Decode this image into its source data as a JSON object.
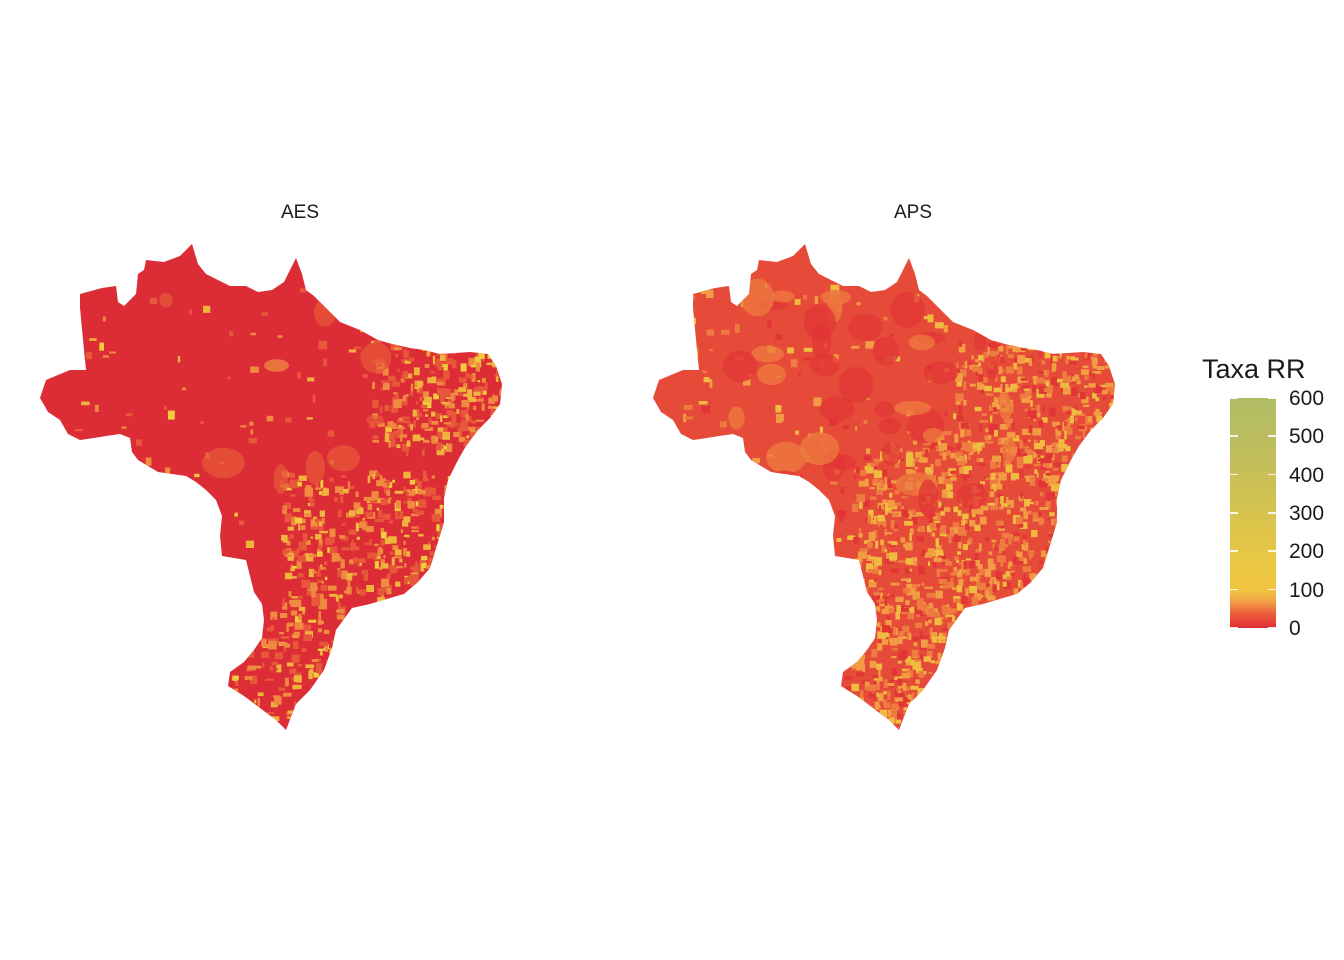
{
  "panels": [
    {
      "title": "AES",
      "base_color": "#dc2d36",
      "overlay_colors": [
        "#e8573a",
        "#ef8a40",
        "#f0b43e",
        "#f2cc3c"
      ]
    },
    {
      "title": "APS",
      "base_color": "#e54b38",
      "overlay_colors": [
        "#e23636",
        "#ee7b3f",
        "#f29d44",
        "#f0bc40"
      ]
    }
  ],
  "legend": {
    "title": "Taxa RR",
    "ticks": [
      {
        "label": "600",
        "value": 600
      },
      {
        "label": "500",
        "value": 500
      },
      {
        "label": "400",
        "value": 400
      },
      {
        "label": "300",
        "value": 300
      },
      {
        "label": "200",
        "value": 200
      },
      {
        "label": "100",
        "value": 100
      },
      {
        "label": "0",
        "value": 0
      }
    ],
    "range": [
      0,
      600
    ],
    "colors": {
      "low": "#de2d35",
      "mid": "#efc43f",
      "high": "#b0bd65"
    }
  }
}
